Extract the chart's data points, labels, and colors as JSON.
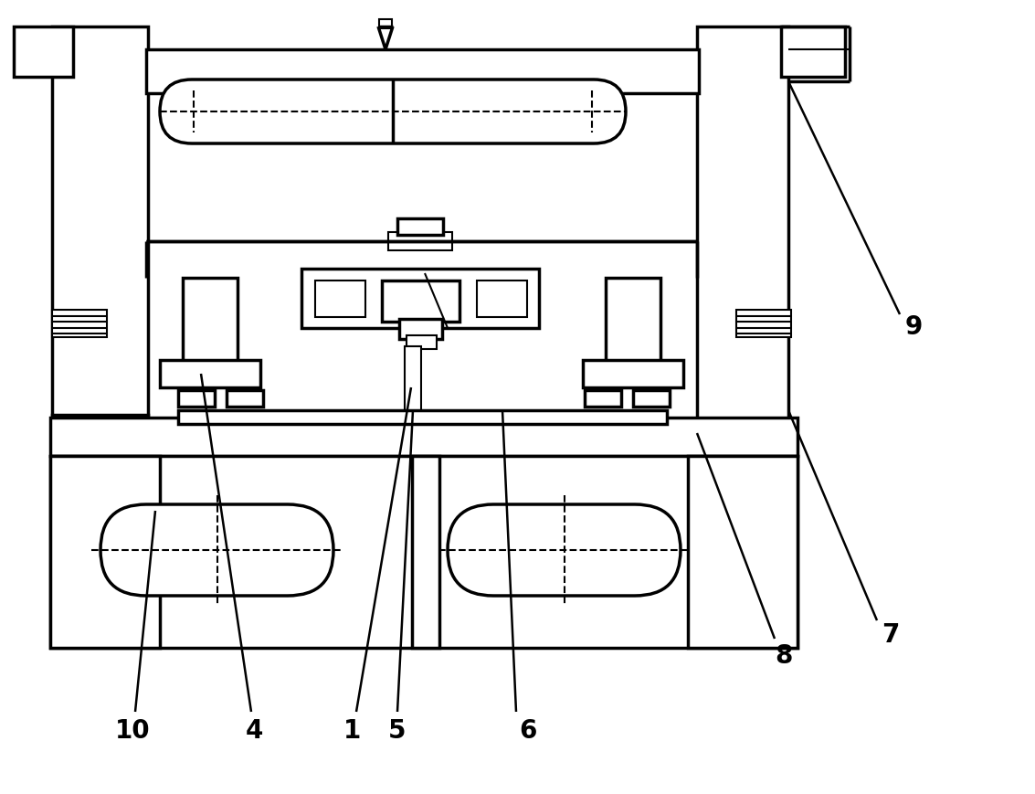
{
  "bg_color": "#ffffff",
  "line_color": "#000000",
  "lw_main": 2.5,
  "lw_thin": 1.5,
  "lw_dash": 1.5,
  "label_fontsize": 20,
  "label_color": "#000000"
}
